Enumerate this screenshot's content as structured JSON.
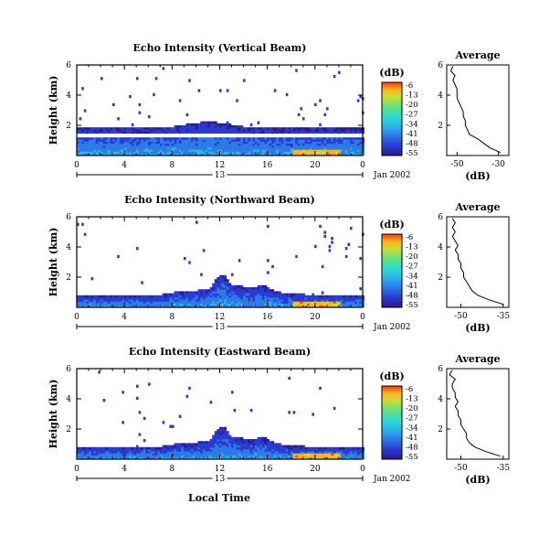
{
  "chart_data": [
    {
      "type": "heatmap",
      "title": "Echo Intensity (Vertical Beam)",
      "ylabel": "Height (km)",
      "xlabel": "Local Time",
      "x_ticks": [
        "0",
        "4",
        "8",
        "12",
        "16",
        "20",
        "0"
      ],
      "y_ticks": [
        "2",
        "4",
        "6"
      ],
      "xlim": [
        0,
        24
      ],
      "ylim": [
        0,
        6
      ],
      "date_label": "13",
      "month_label": "Jan 2002",
      "colorbar": {
        "unit": "(dB)",
        "ticks": [
          "-6",
          "-13",
          "-20",
          "-27",
          "-34",
          "-41",
          "-48",
          "-55"
        ],
        "range": [
          -55,
          -6
        ]
      },
      "profile": {
        "title": "Average",
        "xlabel": "(dB)",
        "x_ticks": [
          "-50",
          "-30"
        ],
        "xlim": [
          -55,
          -25
        ],
        "y_ticks": [
          "2",
          "4",
          "6"
        ],
        "ylim": [
          0,
          6
        ],
        "heights": [
          0.2,
          0.5,
          0.8,
          1.1,
          1.4,
          1.7,
          2.0,
          2.3,
          2.6,
          2.9,
          3.2,
          3.5,
          3.8,
          4.1,
          4.4,
          4.7,
          5.0,
          5.3,
          5.6,
          5.9
        ],
        "values": [
          -29,
          -34,
          -37,
          -40,
          -44,
          -45,
          -46,
          -46,
          -47,
          -47,
          -48,
          -49,
          -50,
          -50,
          -50,
          -51,
          -52,
          -51,
          -53,
          -52
        ]
      }
    },
    {
      "type": "heatmap",
      "title": "Echo Intensity (Northward Beam)",
      "ylabel": "Height (km)",
      "x_ticks": [
        "0",
        "4",
        "8",
        "12",
        "16",
        "20",
        "0"
      ],
      "y_ticks": [
        "2",
        "4",
        "6"
      ],
      "xlim": [
        0,
        24
      ],
      "ylim": [
        0,
        6
      ],
      "date_label": "13",
      "month_label": "Jan 2002",
      "colorbar": {
        "unit": "(dB)",
        "ticks": [
          "-6",
          "-13",
          "-20",
          "-27",
          "-34",
          "-41",
          "-48",
          "-55"
        ],
        "range": [
          -55,
          -6
        ]
      },
      "profile": {
        "title": "Average",
        "xlabel": "(dB)",
        "x_ticks": [
          "-50",
          "-35"
        ],
        "xlim": [
          -55,
          -33
        ],
        "y_ticks": [
          "2",
          "4",
          "6"
        ],
        "ylim": [
          0,
          6
        ],
        "heights": [
          0.2,
          0.5,
          0.8,
          1.1,
          1.4,
          1.7,
          2.0,
          2.3,
          2.6,
          2.9,
          3.2,
          3.5,
          3.8,
          4.1,
          4.4,
          4.7,
          5.0,
          5.3,
          5.6,
          5.9
        ],
        "values": [
          -35,
          -40,
          -44,
          -46,
          -47,
          -48,
          -49,
          -49,
          -50,
          -50,
          -51,
          -51,
          -52,
          -51,
          -52,
          -53,
          -52,
          -53,
          -52,
          -53
        ]
      }
    },
    {
      "type": "heatmap",
      "title": "Echo Intensity (Eastward Beam)",
      "ylabel": "Height (km)",
      "x_ticks": [
        "0",
        "4",
        "8",
        "12",
        "16",
        "20",
        "0"
      ],
      "y_ticks": [
        "2",
        "4",
        "6"
      ],
      "xlim": [
        0,
        24
      ],
      "ylim": [
        0,
        6
      ],
      "date_label": "13",
      "month_label": "Jan 2002",
      "colorbar": {
        "unit": "(dB)",
        "ticks": [
          "-6",
          "-13",
          "-20",
          "-27",
          "-34",
          "-41",
          "-48",
          "-55"
        ],
        "range": [
          -55,
          -6
        ]
      },
      "profile": {
        "title": "Average",
        "xlabel": "(dB)",
        "x_ticks": [
          "-50",
          "-35"
        ],
        "xlim": [
          -55,
          -33
        ],
        "y_ticks": [
          "2",
          "4",
          "6"
        ],
        "ylim": [
          0,
          6
        ],
        "heights": [
          0.2,
          0.5,
          0.8,
          1.1,
          1.4,
          1.7,
          2.0,
          2.3,
          2.6,
          2.9,
          3.2,
          3.5,
          3.8,
          4.1,
          4.4,
          4.7,
          5.0,
          5.3,
          5.6,
          5.9
        ],
        "values": [
          -36,
          -41,
          -45,
          -47,
          -48,
          -48,
          -49,
          -50,
          -50,
          -51,
          -51,
          -52,
          -51,
          -52,
          -52,
          -53,
          -53,
          -52,
          -54,
          -53
        ]
      }
    }
  ],
  "colors": {
    "colorbar": [
      "#2a1a8a",
      "#2a3ad0",
      "#2a7ae8",
      "#2ab4e8",
      "#2adcd0",
      "#66e07a",
      "#c8e030",
      "#ffb020",
      "#ff3a10"
    ],
    "heat_low": "#3a3ad8",
    "heat_high": "#ffa020"
  }
}
